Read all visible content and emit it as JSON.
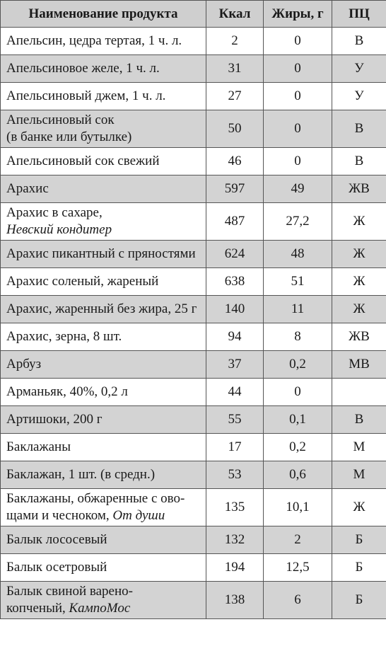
{
  "table": {
    "headers": [
      "Наименование продукта",
      "Ккал",
      "Жиры, г",
      "ПЦ"
    ],
    "rows": [
      {
        "name": "Апельсин, цедра тертая, 1 ч. л.",
        "kcal": "2",
        "fat": "0",
        "pc": "В"
      },
      {
        "name": "Апельсиновое желе, 1 ч. л.",
        "kcal": "31",
        "fat": "0",
        "pc": "У"
      },
      {
        "name": "Апельсиновый джем, 1 ч. л.",
        "kcal": "27",
        "fat": "0",
        "pc": "У"
      },
      {
        "name": "Апельсиновый сок",
        "name2": "(в банке или бутылке)",
        "kcal": "50",
        "fat": "0",
        "pc": "В"
      },
      {
        "name": "Апельсиновый сок свежий",
        "kcal": "46",
        "fat": "0",
        "pc": "В"
      },
      {
        "name": "Арахис",
        "kcal": "597",
        "fat": "49",
        "pc": "ЖВ"
      },
      {
        "name": "Арахис в сахаре,",
        "brand": "Невский кондитер",
        "kcal": "487",
        "fat": "27,2",
        "pc": "Ж"
      },
      {
        "name": "Арахис пикантный с пряностями",
        "kcal": "624",
        "fat": "48",
        "pc": "Ж"
      },
      {
        "name": "Арахис соленый, жареный",
        "kcal": "638",
        "fat": "51",
        "pc": "Ж"
      },
      {
        "name": "Арахис, жаренный без жира, 25 г",
        "kcal": "140",
        "fat": "11",
        "pc": "Ж"
      },
      {
        "name": "Арахис, зерна, 8 шт.",
        "kcal": "94",
        "fat": "8",
        "pc": "ЖВ"
      },
      {
        "name": "Арбуз",
        "kcal": "37",
        "fat": "0,2",
        "pc": "МВ"
      },
      {
        "name": "Арманьяк, 40%, 0,2 л",
        "kcal": "44",
        "fat": "0",
        "pc": ""
      },
      {
        "name": "Артишоки, 200 г",
        "kcal": "55",
        "fat": "0,1",
        "pc": "В"
      },
      {
        "name": "Баклажаны",
        "kcal": "17",
        "fat": "0,2",
        "pc": "М"
      },
      {
        "name": "Баклажан, 1 шт. (в средн.)",
        "kcal": "53",
        "fat": "0,6",
        "pc": "М"
      },
      {
        "name": "Баклажаны, обжаренные с ово-",
        "name2": "щами и чесноком,",
        "brand": "От души",
        "kcal": "135",
        "fat": "10,1",
        "pc": "Ж"
      },
      {
        "name": "Балык лососевый",
        "kcal": "132",
        "fat": "2",
        "pc": "Б"
      },
      {
        "name": "Балык осетровый",
        "kcal": "194",
        "fat": "12,5",
        "pc": "Б"
      },
      {
        "name": "Балык свиной варено-",
        "name2": "копченый,",
        "brand": "КампоМос",
        "kcal": "138",
        "fat": "6",
        "pc": "Б"
      }
    ]
  }
}
